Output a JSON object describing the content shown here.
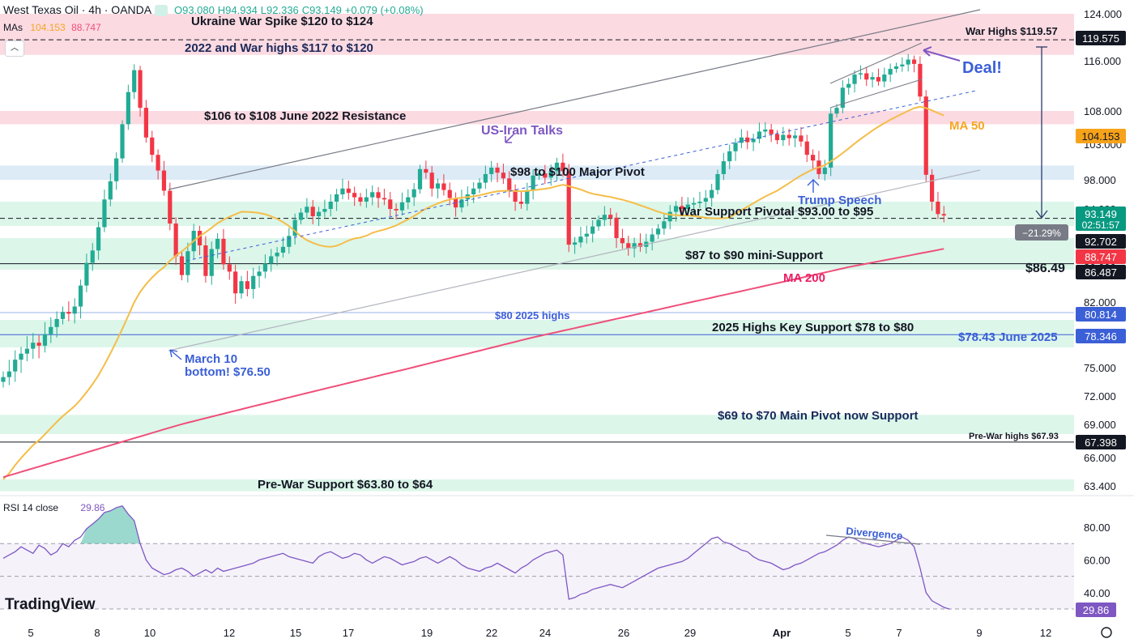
{
  "header": {
    "symbol": "West Texas Oil · 4h · OANDA",
    "open": "O93.080",
    "high": "H94.934",
    "low": "L92.336",
    "close": "C93.149",
    "change": "+0.079 (+0.08%)"
  },
  "mas_legend": {
    "label": "MAs",
    "ma50": "104.153",
    "ma200": "88.747"
  },
  "rsi_legend": {
    "label": "RSI 14 close",
    "value": "29.86"
  },
  "branding": {
    "logo": "TradingView"
  },
  "colors": {
    "up": "#22ab94",
    "down": "#f23645",
    "ma50": "#f5bd48",
    "ma200": "#ef4f7a",
    "rsi": "#7e57c2",
    "annotation": "#3b5fd6"
  },
  "chart_data": [
    {
      "type": "candlestick",
      "title": "West Texas Oil · 4h · OANDA",
      "x_tick_labels": [
        "5",
        "8",
        "10",
        "12",
        "15",
        "17",
        "19",
        "22",
        "24",
        "26",
        "29",
        "Apr",
        "5",
        "7",
        "9",
        "12"
      ],
      "y_tick_labels": [
        "124.000",
        "116.000",
        "108.000",
        "103.000",
        "98.000",
        "94.000",
        "86.000",
        "82.000",
        "78.000",
        "75.000",
        "72.000",
        "69.000",
        "66.000",
        "63.400"
      ],
      "price_scale_tags": [
        {
          "text": "119.575",
          "bg": "#131722",
          "fg": "#ffffff"
        },
        {
          "text": "104.153",
          "bg": "#f7a21b",
          "fg": "#131722"
        },
        {
          "text": "93.149",
          "bg": "#089981",
          "fg": "#ffffff",
          "sub": "02:51:57"
        },
        {
          "text": "92.702",
          "bg": "#131722",
          "fg": "#ffffff"
        },
        {
          "text": "88.747",
          "bg": "#f23645",
          "fg": "#ffffff"
        },
        {
          "text": "86.487",
          "bg": "#131722",
          "fg": "#ffffff"
        },
        {
          "text": "80.814",
          "bg": "#3b5fd6",
          "fg": "#ffffff"
        },
        {
          "text": "78.346",
          "bg": "#3b5fd6",
          "fg": "#ffffff"
        },
        {
          "text": "67.398",
          "bg": "#131722",
          "fg": "#ffffff"
        }
      ],
      "candles_close": [
        74.0,
        74.6,
        75.8,
        76.4,
        76.9,
        77.5,
        77.2,
        78.4,
        79.2,
        80.1,
        80.9,
        80.7,
        81.5,
        83.9,
        86.6,
        88.3,
        91.5,
        95.3,
        97.8,
        101.0,
        106.0,
        111.0,
        114.5,
        108.5,
        104.0,
        101.5,
        99.3,
        96.5,
        92.0,
        87.5,
        85.1,
        88.2,
        91.0,
        89.0,
        85.0,
        88.5,
        89.9,
        86.4,
        85.5,
        83.0,
        84.4,
        83.5,
        85.0,
        85.5,
        86.5,
        87.5,
        88.0,
        88.8,
        90.3,
        92.5,
        93.5,
        94.3,
        93.0,
        93.6,
        94.0,
        95.0,
        96.0,
        96.8,
        96.2,
        95.6,
        95.0,
        95.6,
        96.3,
        95.5,
        95.3,
        94.0,
        93.8,
        94.9,
        95.6,
        96.7,
        99.5,
        99.0,
        96.8,
        97.5,
        96.6,
        95.5,
        94.2,
        95.3,
        96.0,
        96.8,
        97.6,
        98.8,
        99.7,
        99.0,
        98.2,
        96.6,
        95.0,
        94.7,
        96.5,
        98.6,
        98.9,
        98.3,
        99.2,
        100.4,
        99.2,
        89.1,
        89.4,
        90.2,
        90.6,
        91.6,
        92.5,
        93.2,
        92.8,
        90.0,
        89.3,
        88.6,
        89.3,
        88.8,
        89.5,
        90.5,
        91.3,
        92.3,
        93.6,
        94.4,
        94.0,
        94.6,
        94.8,
        95.0,
        95.5,
        96.6,
        98.8,
        100.6,
        102.0,
        103.2,
        104.0,
        103.3,
        103.8,
        104.9,
        105.2,
        104.5,
        103.6,
        104.4,
        103.9,
        104.3,
        103.4,
        101.5,
        100.7,
        98.8,
        99.7,
        107.6,
        108.5,
        111.7,
        112.3,
        113.8,
        114.0,
        113.0,
        113.4,
        112.7,
        113.8,
        114.7,
        115.1,
        115.4,
        116.2,
        115.5,
        110.3,
        98.7,
        95.0,
        93.3,
        93.1
      ],
      "series": [
        {
          "name": "MA 50",
          "color": "#f5bd48",
          "last": 104.153
        },
        {
          "name": "MA 200",
          "color": "#ef4f7a",
          "last": 88.747
        }
      ],
      "zones": [
        {
          "label": "Ukraine War Spike $120 to $124",
          "low": 120,
          "high": 124,
          "color": "#fbd3dc"
        },
        {
          "label": "2022 and War highs $117 to $120",
          "low": 117,
          "high": 120,
          "color": "#fbd3dc"
        },
        {
          "label": "$106 to $108 June 2022 Resistance",
          "low": 106,
          "high": 108,
          "color": "#fbd3dc"
        },
        {
          "label": "$98 to $100 Major Pivot",
          "low": 98,
          "high": 100,
          "color": "#d6e8f5"
        },
        {
          "label": "War Support Pivotal $93.00 to $95",
          "low": 93,
          "high": 95,
          "color": "#d6f4e6"
        },
        {
          "label": "$87 to $90 mini-Support",
          "low": 87,
          "high": 90,
          "color": "#d6f4e6"
        },
        {
          "label": "2025 Highs Key Support $78 to $80",
          "low": 78,
          "high": 80,
          "color": "#d6f4e6"
        },
        {
          "label": "$69 to $70 Main Pivot now Support",
          "low": 69,
          "high": 70,
          "color": "#d6f4e6"
        },
        {
          "label": "Pre-War Support $63.80 to $64",
          "low": 63.8,
          "high": 64,
          "color": "#d6f4e6"
        }
      ],
      "annotations": [
        {
          "text": "War Highs $119.57"
        },
        {
          "text": "Deal!"
        },
        {
          "text": "MA 50"
        },
        {
          "text": "US-Iran Talks"
        },
        {
          "text": "Trump Speech"
        },
        {
          "text": "$86.49"
        },
        {
          "text": "MA 200"
        },
        {
          "text": "$80 2025 highs"
        },
        {
          "text": "$78.43 June 2025"
        },
        {
          "text": "March 10"
        },
        {
          "text": "bottom! $76.50"
        },
        {
          "text": "Pre-War highs $67.93"
        },
        {
          "text": "−21.29%"
        }
      ]
    },
    {
      "type": "line",
      "title": "RSI 14 close",
      "y_tick_labels": [
        "80.00",
        "60.00",
        "40.00"
      ],
      "last_value_tag": "29.86",
      "annotation": "Divergence",
      "values": [
        61,
        63,
        65,
        68,
        66,
        64,
        69,
        67,
        63,
        65,
        70,
        68,
        72,
        74,
        79,
        82,
        85,
        89,
        90,
        92,
        93,
        88,
        84,
        70,
        60,
        55,
        53,
        51,
        52,
        54,
        55,
        53,
        50,
        52,
        54,
        52,
        55,
        53,
        54,
        55,
        56,
        57,
        58,
        60,
        61,
        62,
        63,
        64,
        62,
        61,
        60,
        59,
        58,
        62,
        64,
        65,
        63,
        61,
        62,
        64,
        63,
        60,
        58,
        60,
        62,
        61,
        59,
        57,
        58,
        59,
        61,
        62,
        60,
        58,
        60,
        62,
        60,
        57,
        55,
        54,
        53,
        55,
        56,
        58,
        56,
        54,
        52,
        55,
        57,
        60,
        62,
        64,
        65,
        66,
        63,
        36,
        37,
        39,
        40,
        42,
        43,
        44,
        45,
        44,
        43,
        45,
        47,
        49,
        51,
        53,
        55,
        56,
        57,
        58,
        59,
        61,
        64,
        67,
        70,
        73,
        74,
        71,
        70,
        68,
        66,
        65,
        62,
        60,
        59,
        58,
        56,
        54,
        55,
        57,
        58,
        60,
        62,
        64,
        65,
        67,
        69,
        72,
        74,
        73,
        71,
        70,
        69,
        68,
        69,
        70,
        72,
        74,
        72,
        68,
        55,
        40,
        35,
        33,
        31,
        29.86
      ]
    }
  ]
}
